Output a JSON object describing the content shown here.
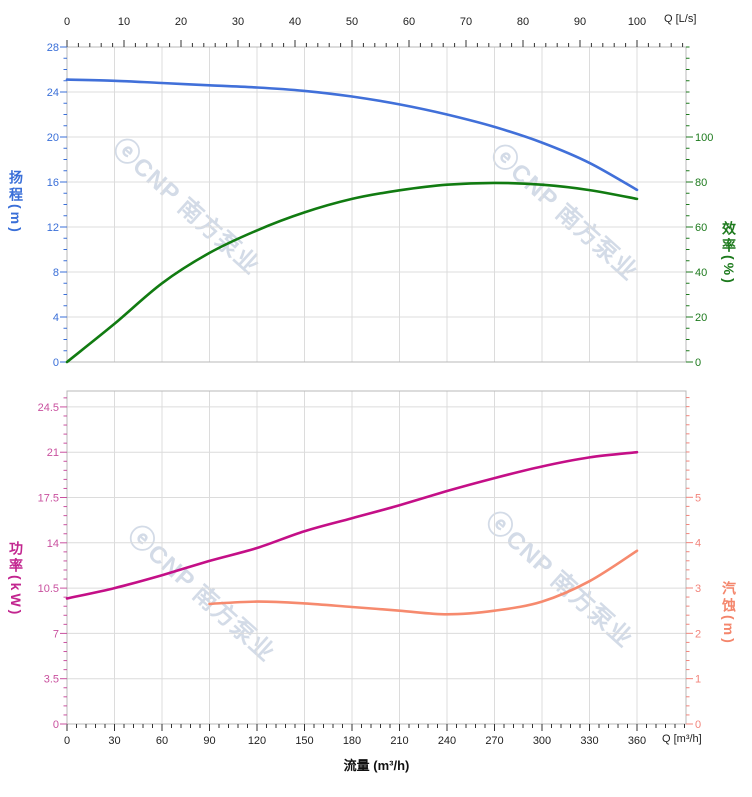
{
  "watermark": {
    "logo_glyph": "ⓔ",
    "text": "CNP 南方泵业"
  },
  "chart_data": [
    {
      "type": "line",
      "panel": "top",
      "x_axis_top": {
        "label": "Q [L/s]",
        "unit": "L/s",
        "ticks": [
          0,
          10,
          20,
          30,
          40,
          50,
          60,
          70,
          80,
          90,
          100
        ],
        "minor_step": 2,
        "max_shown": 108,
        "equivalent_m3h_per_Ls": 3.6
      },
      "y_left": {
        "label": "扬程(m)",
        "ticks": [
          0,
          4,
          8,
          12,
          16,
          20,
          24,
          28
        ],
        "minor_step": 1,
        "range": [
          0,
          28
        ],
        "color": "#3A6FD8"
      },
      "y_right": {
        "label": "效率(%)",
        "ticks": [
          0,
          20,
          40,
          60,
          80,
          100
        ],
        "minor_step": 5,
        "range": [
          0,
          140
        ],
        "color": "#1D7A1D"
      },
      "grid": true,
      "series": [
        {
          "name": "扬程",
          "axis": "left",
          "color": "#4170D9",
          "x": [
            0,
            30,
            60,
            90,
            120,
            150,
            180,
            210,
            240,
            270,
            300,
            330,
            360
          ],
          "values": [
            25.1,
            25.0,
            24.8,
            24.6,
            24.4,
            24.1,
            23.6,
            22.9,
            22.0,
            20.9,
            19.5,
            17.7,
            15.3
          ]
        },
        {
          "name": "效率",
          "axis": "right",
          "color": "#117B11",
          "x": [
            0,
            30,
            60,
            90,
            120,
            150,
            180,
            210,
            240,
            270,
            300,
            330,
            360
          ],
          "values": [
            0,
            17,
            35,
            48.5,
            58.5,
            66.5,
            72.5,
            76.3,
            78.8,
            79.6,
            78.8,
            76.4,
            72.5
          ]
        }
      ]
    },
    {
      "type": "line",
      "panel": "bottom",
      "x_axis_bottom": {
        "label": "Q [m³/h]",
        "title": "流量 (m³/h)",
        "unit": "m³/h",
        "ticks": [
          0,
          30,
          60,
          90,
          120,
          150,
          180,
          210,
          240,
          270,
          300,
          330,
          360
        ],
        "minor_step": 6,
        "max_shown": 390
      },
      "y_left": {
        "label": "功率(kW)",
        "ticks": [
          0,
          3.5,
          7,
          10.5,
          14,
          17.5,
          21,
          24.5
        ],
        "minor_step": 0.7,
        "range": [
          0,
          25.7
        ],
        "color": "#C9519F"
      },
      "y_right": {
        "label": "汽蚀(m)",
        "ticks": [
          0,
          1,
          2,
          3,
          4,
          5
        ],
        "minor_step": 0.2,
        "range": [
          0,
          7.3
        ],
        "color": "#F2847B"
      },
      "grid": true,
      "series": [
        {
          "name": "功率",
          "axis": "left",
          "color": "#C40F87",
          "x": [
            0,
            30,
            60,
            90,
            120,
            150,
            180,
            210,
            240,
            270,
            300,
            330,
            360
          ],
          "values": [
            9.7,
            10.5,
            11.5,
            12.6,
            13.6,
            14.9,
            15.9,
            16.9,
            18.0,
            19.0,
            19.9,
            20.6,
            21.0
          ]
        },
        {
          "name": "汽蚀",
          "axis": "right",
          "color": "#F68A6E",
          "x": [
            90,
            120,
            150,
            180,
            210,
            240,
            270,
            300,
            330,
            360
          ],
          "values": [
            2.65,
            2.7,
            2.66,
            2.58,
            2.5,
            2.42,
            2.5,
            2.7,
            3.15,
            3.82
          ]
        }
      ]
    }
  ]
}
